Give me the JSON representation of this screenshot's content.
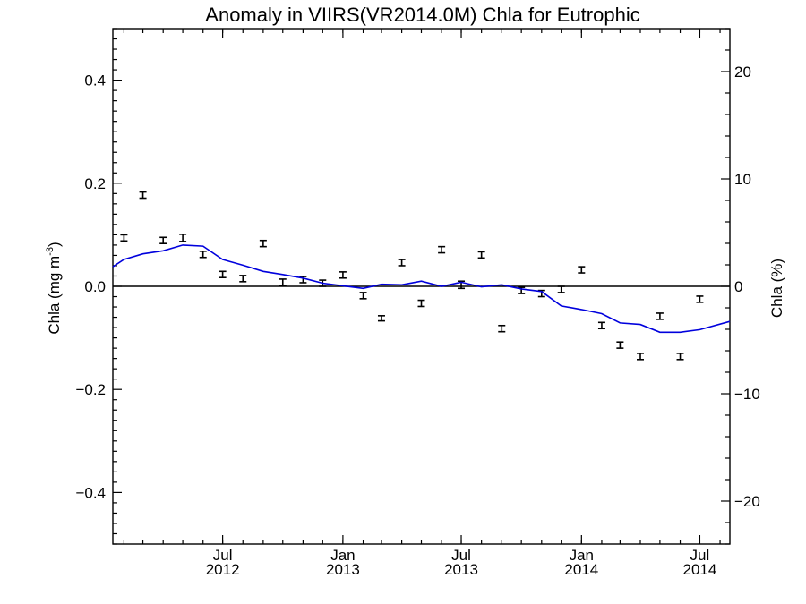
{
  "chart_data": {
    "type": "line",
    "title": "Anomaly in VIIRS(VR2014.0M) Chla for Eutrophic",
    "ylabel_left": "Chla (mg m",
    "ylabel_left_sup": "-3",
    "ylabel_left_suffix": ")",
    "ylabel_right": "Chla (%)",
    "xlim": [
      "2012-01-15",
      "2014-08-16"
    ],
    "ylim_left": [
      -0.5,
      0.5
    ],
    "ylim_right": [
      -24,
      24
    ],
    "left_ticks": [
      {
        "value": 0.4,
        "label": "0.4"
      },
      {
        "value": 0.2,
        "label": "0.2"
      },
      {
        "value": 0.0,
        "label": "0.0"
      },
      {
        "value": -0.2,
        "label": "−0.2"
      },
      {
        "value": -0.4,
        "label": "−0.4"
      }
    ],
    "right_ticks": [
      {
        "value": 20,
        "label": "20"
      },
      {
        "value": 10,
        "label": "10"
      },
      {
        "value": 0,
        "label": "0"
      },
      {
        "value": -10,
        "label": "−10"
      },
      {
        "value": -20,
        "label": "−20"
      }
    ],
    "x_ticks": [
      {
        "date": "2012-07-01",
        "line1": "Jul",
        "line2": "2012"
      },
      {
        "date": "2013-01-01",
        "line1": "Jan",
        "line2": "2013"
      },
      {
        "date": "2013-07-01",
        "line1": "Jul",
        "line2": "2013"
      },
      {
        "date": "2014-01-01",
        "line1": "Jan",
        "line2": "2014"
      },
      {
        "date": "2014-07-01",
        "line1": "Jul",
        "line2": "2014"
      }
    ],
    "series": [
      {
        "type": "errorbar",
        "color": "#000000",
        "points": [
          {
            "date": "2012-02-01",
            "y": 0.094,
            "err": 0.006
          },
          {
            "date": "2012-03-01",
            "y": 0.177,
            "err": 0.006
          },
          {
            "date": "2012-04-01",
            "y": 0.089,
            "err": 0.006
          },
          {
            "date": "2012-05-01",
            "y": 0.094,
            "err": 0.007
          },
          {
            "date": "2012-06-01",
            "y": 0.062,
            "err": 0.006
          },
          {
            "date": "2012-07-01",
            "y": 0.023,
            "err": 0.006
          },
          {
            "date": "2012-08-01",
            "y": 0.015,
            "err": 0.006
          },
          {
            "date": "2012-09-01",
            "y": 0.083,
            "err": 0.006
          },
          {
            "date": "2012-10-01",
            "y": 0.008,
            "err": 0.006
          },
          {
            "date": "2012-11-01",
            "y": 0.013,
            "err": 0.006
          },
          {
            "date": "2012-12-01",
            "y": 0.006,
            "err": 0.006
          },
          {
            "date": "2013-01-01",
            "y": 0.022,
            "err": 0.006
          },
          {
            "date": "2013-02-01",
            "y": -0.018,
            "err": 0.006
          },
          {
            "date": "2013-03-01",
            "y": -0.062,
            "err": 0.005
          },
          {
            "date": "2013-04-01",
            "y": 0.046,
            "err": 0.006
          },
          {
            "date": "2013-05-01",
            "y": -0.033,
            "err": 0.006
          },
          {
            "date": "2013-06-01",
            "y": 0.071,
            "err": 0.006
          },
          {
            "date": "2013-07-01",
            "y": 0.003,
            "err": 0.007
          },
          {
            "date": "2013-08-01",
            "y": 0.061,
            "err": 0.006
          },
          {
            "date": "2013-09-01",
            "y": -0.082,
            "err": 0.006
          },
          {
            "date": "2013-10-01",
            "y": -0.008,
            "err": 0.006
          },
          {
            "date": "2013-11-01",
            "y": -0.014,
            "err": 0.006
          },
          {
            "date": "2013-12-01",
            "y": -0.006,
            "err": 0.006
          },
          {
            "date": "2014-01-01",
            "y": 0.032,
            "err": 0.006
          },
          {
            "date": "2014-02-01",
            "y": -0.076,
            "err": 0.006
          },
          {
            "date": "2014-03-01",
            "y": -0.114,
            "err": 0.006
          },
          {
            "date": "2014-04-01",
            "y": -0.136,
            "err": 0.006
          },
          {
            "date": "2014-05-01",
            "y": -0.058,
            "err": 0.006
          },
          {
            "date": "2014-06-01",
            "y": -0.136,
            "err": 0.006
          },
          {
            "date": "2014-07-01",
            "y": -0.025,
            "err": 0.006
          }
        ]
      },
      {
        "type": "line",
        "color": "#0000dd",
        "points": [
          {
            "date": "2012-01-15",
            "y": 0.038
          },
          {
            "date": "2012-02-01",
            "y": 0.052
          },
          {
            "date": "2012-03-01",
            "y": 0.063
          },
          {
            "date": "2012-04-01",
            "y": 0.069
          },
          {
            "date": "2012-05-01",
            "y": 0.08
          },
          {
            "date": "2012-06-01",
            "y": 0.078
          },
          {
            "date": "2012-07-01",
            "y": 0.052
          },
          {
            "date": "2012-08-01",
            "y": 0.041
          },
          {
            "date": "2012-09-01",
            "y": 0.029
          },
          {
            "date": "2012-10-01",
            "y": 0.023
          },
          {
            "date": "2012-11-01",
            "y": 0.016
          },
          {
            "date": "2012-12-01",
            "y": 0.006
          },
          {
            "date": "2013-01-01",
            "y": 0.001
          },
          {
            "date": "2013-02-01",
            "y": -0.004
          },
          {
            "date": "2013-03-01",
            "y": 0.004
          },
          {
            "date": "2013-04-01",
            "y": 0.003
          },
          {
            "date": "2013-05-01",
            "y": 0.01
          },
          {
            "date": "2013-06-01",
            "y": 0.0
          },
          {
            "date": "2013-07-01",
            "y": 0.008
          },
          {
            "date": "2013-08-01",
            "y": -0.001
          },
          {
            "date": "2013-09-01",
            "y": 0.003
          },
          {
            "date": "2013-10-01",
            "y": -0.005
          },
          {
            "date": "2013-11-01",
            "y": -0.01
          },
          {
            "date": "2013-12-01",
            "y": -0.038
          },
          {
            "date": "2014-01-01",
            "y": -0.045
          },
          {
            "date": "2014-02-01",
            "y": -0.053
          },
          {
            "date": "2014-03-01",
            "y": -0.071
          },
          {
            "date": "2014-04-01",
            "y": -0.074
          },
          {
            "date": "2014-05-01",
            "y": -0.089
          },
          {
            "date": "2014-06-01",
            "y": -0.089
          },
          {
            "date": "2014-07-01",
            "y": -0.084
          },
          {
            "date": "2014-08-16",
            "y": -0.068
          }
        ]
      }
    ],
    "zero_line": true,
    "grid": false,
    "legend": "none"
  }
}
